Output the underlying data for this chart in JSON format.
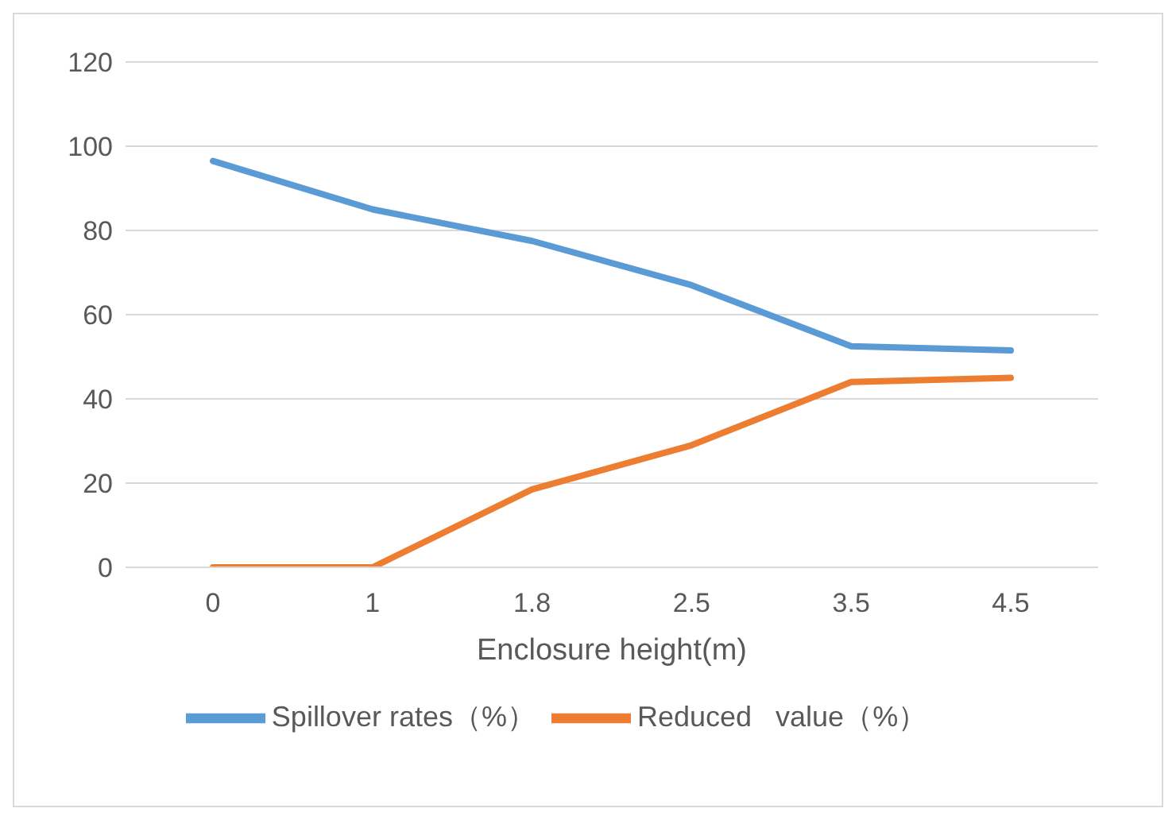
{
  "chart_data": {
    "type": "line",
    "xlabel": "Enclosure height(m)",
    "categories": [
      "0",
      "1",
      "1.8",
      "2.5",
      "3.5",
      "4.5"
    ],
    "series": [
      {
        "name": "Spillover rates（%）",
        "color": "#5b9bd5",
        "values": [
          96.5,
          85,
          77.5,
          67,
          52.5,
          51.5
        ]
      },
      {
        "name": "Reduced   value（%）",
        "color": "#ed7d31",
        "values": [
          0,
          0,
          18.5,
          29,
          44,
          45
        ]
      }
    ],
    "ylim": [
      0,
      120
    ],
    "yticks": [
      0,
      20,
      40,
      60,
      80,
      100,
      120
    ],
    "grid": "y",
    "legend": "bottom",
    "marker": "none",
    "line_style": "solid"
  }
}
